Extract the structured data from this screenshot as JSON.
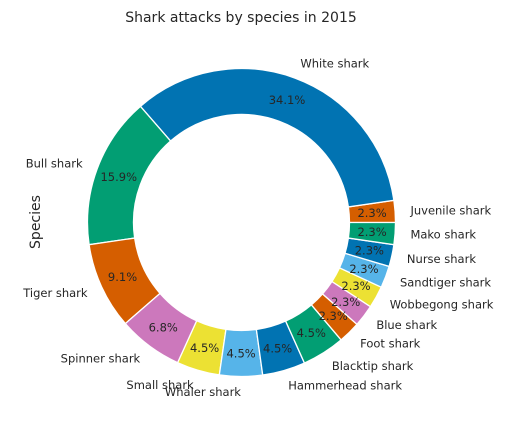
{
  "chart_data": {
    "type": "pie",
    "style": "donut",
    "title": "Shark attacks by species in 2015",
    "ylabel": "Species",
    "start_angle_deg": 0,
    "direction": "counterclockwise",
    "categories": [
      "Juvenile shark",
      "White shark",
      "Bull shark",
      "Tiger shark",
      "Spinner shark",
      "Small shark",
      "Whaler shark",
      "Hammerhead shark",
      "Blacktip shark",
      "Foot shark",
      "Blue shark",
      "Wobbegong shark",
      "Sandtiger shark",
      "Nurse shark",
      "Mako shark"
    ],
    "values": [
      2.3,
      34.1,
      15.9,
      9.1,
      6.8,
      4.5,
      4.5,
      4.5,
      4.5,
      2.3,
      2.3,
      2.3,
      2.3,
      2.3,
      2.3
    ],
    "value_labels": [
      "2.3%",
      "34.1%",
      "15.9%",
      "9.1%",
      "6.8%",
      "4.5%",
      "4.5%",
      "4.5%",
      "4.5%",
      "2.3%",
      "2.3%",
      "2.3%",
      "2.3%",
      "2.3%",
      "2.3%"
    ],
    "colors": [
      "#d55e00",
      "#0173b2",
      "#029e73",
      "#d55e00",
      "#cc78bc",
      "#ece133",
      "#56b4e9",
      "#0173b2",
      "#029e73",
      "#d55e00",
      "#cc78bc",
      "#ece133",
      "#56b4e9",
      "#0173b2",
      "#029e73"
    ],
    "edge_color": "#ffffff",
    "legend": "none"
  }
}
